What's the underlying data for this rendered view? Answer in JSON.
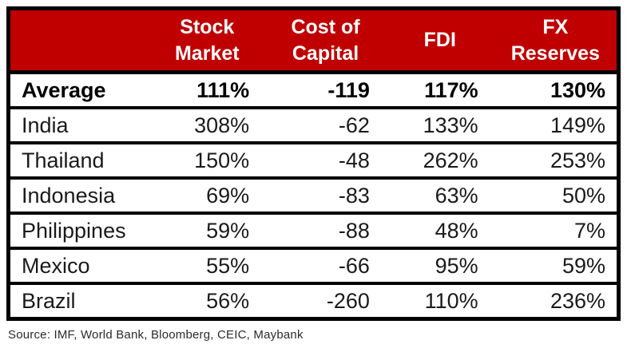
{
  "colors": {
    "header_bg": "#C00000",
    "header_text": "#FFFFFF",
    "border": "#000000",
    "body_text": "#1A1A1A"
  },
  "chart_data": {
    "type": "table",
    "corner_label": "",
    "columns": [
      "Stock\nMarket",
      "Cost of\nCapital",
      "FDI",
      "FX\nReserves"
    ],
    "rows": [
      {
        "label": "Average",
        "values": [
          "111%",
          "-119",
          "117%",
          "130%"
        ],
        "bold": true
      },
      {
        "label": "India",
        "values": [
          "308%",
          "-62",
          "133%",
          "149%"
        ],
        "bold": false
      },
      {
        "label": "Thailand",
        "values": [
          "150%",
          "-48",
          "262%",
          "253%"
        ],
        "bold": false
      },
      {
        "label": "Indonesia",
        "values": [
          "69%",
          "-83",
          "63%",
          "50%"
        ],
        "bold": false
      },
      {
        "label": "Philippines",
        "values": [
          "59%",
          "-88",
          "48%",
          "7%"
        ],
        "bold": false
      },
      {
        "label": "Mexico",
        "values": [
          "55%",
          "-66",
          "95%",
          "59%"
        ],
        "bold": false
      },
      {
        "label": "Brazil",
        "values": [
          "56%",
          "-260",
          "110%",
          "236%"
        ],
        "bold": false
      }
    ],
    "source_note": "Source: IMF, World Bank, Bloomberg, CEIC, Maybank"
  }
}
